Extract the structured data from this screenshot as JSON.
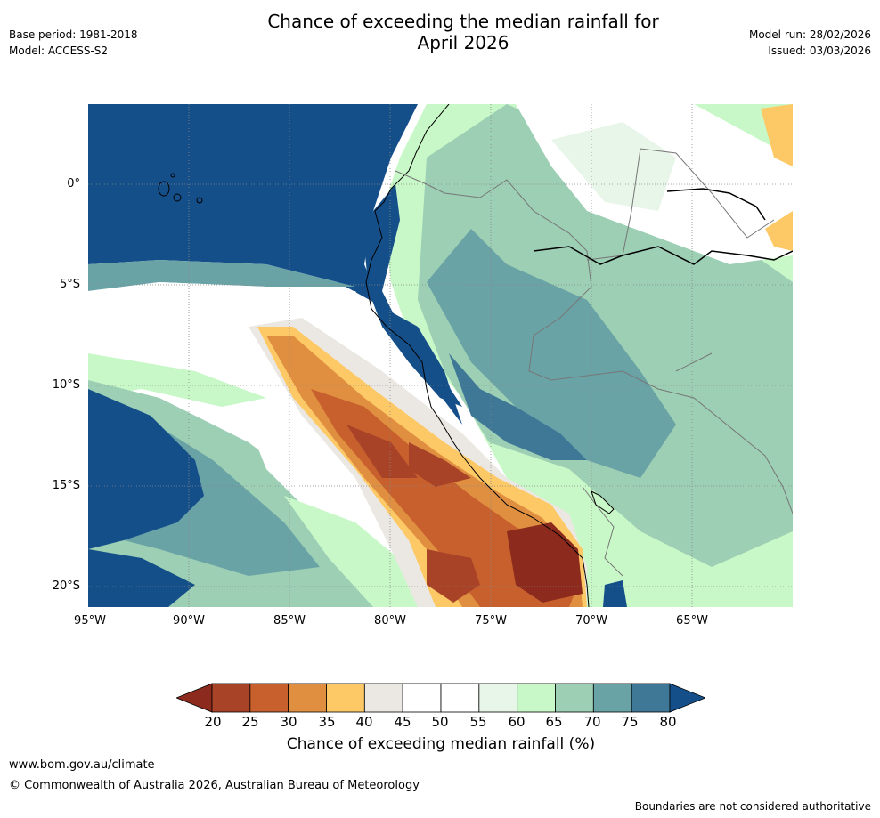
{
  "title": {
    "line1": "Chance of exceeding the median rainfall for",
    "line2": "April 2026"
  },
  "meta_left": {
    "base_period": "Base period: 1981-2018",
    "model": "Model: ACCESS-S2"
  },
  "meta_right": {
    "model_run": "Model run: 28/02/2026",
    "issued": "Issued: 03/03/2026"
  },
  "map": {
    "lat_labels": [
      "0°",
      "5°S",
      "10°S",
      "15°S",
      "20°S"
    ],
    "lon_labels": [
      "95°W",
      "90°W",
      "85°W",
      "80°W",
      "75°W",
      "70°W",
      "65°W"
    ],
    "extent": {
      "lon_min": -95,
      "lon_max": -60,
      "lat_min": -21,
      "lat_max": 4
    }
  },
  "colorbar": {
    "ticks": [
      "20",
      "25",
      "30",
      "35",
      "40",
      "45",
      "50",
      "55",
      "60",
      "65",
      "70",
      "75",
      "80"
    ],
    "colors": [
      "#8b2a1d",
      "#a84328",
      "#c8602e",
      "#e08f40",
      "#fdc966",
      "#ebe8e3",
      "#ffffff",
      "#ffffff",
      "#e8f5e9",
      "#c8f8c8",
      "#9ccfb4",
      "#6aa3a6",
      "#3f7897",
      "#154f8a"
    ],
    "label": "Chance of exceeding median rainfall (%)"
  },
  "footer": {
    "website": "www.bom.gov.au/climate",
    "copyright": "© Commonwealth of Australia 2026, Australian Bureau of Meteorology",
    "disclaimer": "Boundaries are not considered authoritative"
  }
}
